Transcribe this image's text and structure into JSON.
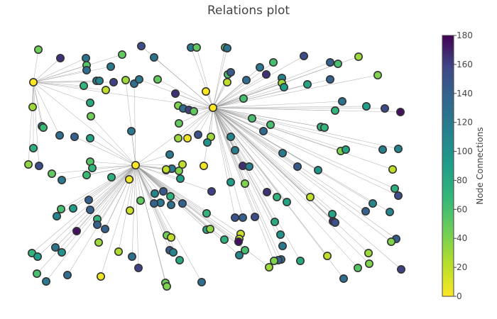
{
  "chart_data": {
    "type": "network",
    "title": "Relations plot",
    "colorbar": {
      "title": "Node Connections",
      "range": [
        0,
        180
      ],
      "ticks": [
        0,
        20,
        40,
        60,
        80,
        100,
        120,
        140,
        160,
        180
      ],
      "colorscale": "Viridis (reversed: 0 = yellow, 180 = purple)"
    },
    "hubs": [
      {
        "x": 47,
        "y": 116,
        "value": 0
      },
      {
        "x": 300,
        "y": 152,
        "value": 0
      },
      {
        "x": 191,
        "y": 233,
        "value": 0
      }
    ],
    "nodes": [
      [
        54,
        70,
        45
      ],
      [
        85,
        82,
        165
      ],
      [
        121,
        82,
        125
      ],
      [
        122,
        92,
        55
      ],
      [
        122,
        99,
        130
      ],
      [
        172,
        77,
        50
      ],
      [
        199,
        65,
        155
      ],
      [
        217,
        81,
        125
      ],
      [
        269,
        67,
        120
      ],
      [
        277,
        67,
        50
      ],
      [
        317,
        67,
        55
      ],
      [
        320,
        68,
        125
      ],
      [
        156,
        94,
        120
      ],
      [
        136,
        114,
        120
      ],
      [
        140,
        114,
        110
      ],
      [
        160,
        116,
        160
      ],
      [
        177,
        113,
        30
      ],
      [
        189,
        118,
        130
      ],
      [
        196,
        112,
        120
      ],
      [
        149,
        127,
        20
      ],
      [
        118,
        121,
        70
      ],
      [
        127,
        145,
        80
      ],
      [
        247,
        132,
        165
      ],
      [
        290,
        129,
        0
      ],
      [
        222,
        112,
        50
      ],
      [
        251,
        149,
        40
      ],
      [
        258,
        153,
        130
      ],
      [
        266,
        155,
        160
      ],
      [
        273,
        157,
        50
      ],
      [
        46,
        151,
        30
      ],
      [
        59,
        178,
        120
      ],
      [
        61,
        180,
        65
      ],
      [
        84,
        191,
        130
      ],
      [
        105,
        193,
        140
      ],
      [
        127,
        195,
        85
      ],
      [
        128,
        164,
        45
      ],
      [
        185,
        185,
        120
      ],
      [
        252,
        174,
        50
      ],
      [
        279,
        190,
        150
      ],
      [
        297,
        193,
        30
      ],
      [
        292,
        201,
        100
      ],
      [
        264,
        195,
        5
      ],
      [
        251,
        195,
        30
      ],
      [
        47,
        209,
        75
      ],
      [
        40,
        232,
        35
      ],
      [
        55,
        234,
        155
      ],
      [
        73,
        245,
        50
      ],
      [
        87,
        254,
        120
      ],
      [
        122,
        247,
        65
      ],
      [
        127,
        228,
        55
      ],
      [
        130,
        237,
        70
      ],
      [
        157,
        250,
        75
      ],
      [
        182,
        253,
        5
      ],
      [
        239,
        218,
        120
      ],
      [
        234,
        240,
        160
      ],
      [
        242,
        238,
        120
      ],
      [
        252,
        241,
        40
      ],
      [
        254,
        252,
        90
      ],
      [
        287,
        234,
        5
      ],
      [
        325,
        193,
        110
      ],
      [
        343,
        139,
        60
      ],
      [
        321,
        105,
        60
      ],
      [
        320,
        116,
        20
      ],
      [
        325,
        102,
        145
      ],
      [
        347,
        113,
        130
      ],
      [
        375,
        105,
        165
      ],
      [
        366,
        95,
        120
      ],
      [
        385,
        88,
        60
      ],
      [
        397,
        110,
        110
      ],
      [
        397,
        117,
        30
      ],
      [
        400,
        123,
        90
      ],
      [
        355,
        167,
        60
      ],
      [
        371,
        185,
        135
      ],
      [
        381,
        176,
        60
      ],
      [
        342,
        234,
        165
      ],
      [
        351,
        235,
        115
      ],
      [
        331,
        212,
        115
      ],
      [
        398,
        216,
        120
      ],
      [
        419,
        235,
        145
      ],
      [
        448,
        240,
        100
      ],
      [
        428,
        79,
        155
      ],
      [
        465,
        88,
        140
      ],
      [
        476,
        90,
        60
      ],
      [
        505,
        80,
        30
      ],
      [
        532,
        106,
        40
      ],
      [
        465,
        112,
        140
      ],
      [
        433,
        119,
        85
      ],
      [
        482,
        143,
        125
      ],
      [
        472,
        156,
        70
      ],
      [
        516,
        150,
        90
      ],
      [
        542,
        153,
        155
      ],
      [
        564,
        158,
        175
      ],
      [
        452,
        179,
        70
      ],
      [
        457,
        180,
        70
      ],
      [
        480,
        213,
        40
      ],
      [
        487,
        211,
        85
      ],
      [
        539,
        211,
        115
      ],
      [
        561,
        210,
        110
      ],
      [
        553,
        239,
        20
      ],
      [
        325,
        257,
        90
      ],
      [
        345,
        259,
        40
      ],
      [
        376,
        271,
        165
      ],
      [
        390,
        278,
        70
      ],
      [
        404,
        285,
        85
      ],
      [
        437,
        278,
        20
      ],
      [
        556,
        266,
        75
      ],
      [
        561,
        276,
        155
      ],
      [
        525,
        287,
        110
      ],
      [
        515,
        298,
        140
      ],
      [
        549,
        299,
        110
      ],
      [
        468,
        302,
        85
      ],
      [
        469,
        312,
        165
      ],
      [
        472,
        314,
        150
      ],
      [
        558,
        337,
        145
      ],
      [
        551,
        341,
        40
      ],
      [
        519,
        357,
        30
      ],
      [
        461,
        361,
        20
      ],
      [
        504,
        378,
        55
      ],
      [
        520,
        372,
        40
      ],
      [
        565,
        380,
        160
      ],
      [
        484,
        393,
        130
      ],
      [
        108,
        326,
        175
      ],
      [
        137,
        309,
        70
      ],
      [
        137,
        317,
        140
      ],
      [
        148,
        323,
        140
      ],
      [
        139,
        342,
        30
      ],
      [
        125,
        282,
        140
      ],
      [
        127,
        296,
        140
      ],
      [
        198,
        283,
        50
      ],
      [
        183,
        297,
        15
      ],
      [
        218,
        273,
        110
      ],
      [
        230,
        270,
        145
      ],
      [
        240,
        277,
        75
      ],
      [
        226,
        286,
        120
      ],
      [
        217,
        287,
        140
      ],
      [
        241,
        289,
        130
      ],
      [
        257,
        287,
        140
      ],
      [
        298,
        270,
        160
      ],
      [
        291,
        301,
        70
      ],
      [
        291,
        324,
        80
      ],
      [
        296,
        323,
        35
      ],
      [
        316,
        338,
        75
      ],
      [
        331,
        307,
        150
      ],
      [
        342,
        307,
        140
      ],
      [
        359,
        306,
        155
      ],
      [
        387,
        313,
        80
      ],
      [
        395,
        331,
        100
      ],
      [
        339,
        330,
        15
      ],
      [
        337,
        337,
        20
      ],
      [
        336,
        341,
        175
      ],
      [
        345,
        353,
        60
      ],
      [
        337,
        360,
        110
      ],
      [
        398,
        347,
        120
      ],
      [
        396,
        366,
        130
      ],
      [
        392,
        367,
        140
      ],
      [
        386,
        368,
        40
      ],
      [
        379,
        377,
        30
      ],
      [
        423,
        368,
        80
      ],
      [
        45,
        357,
        70
      ],
      [
        53,
        362,
        90
      ],
      [
        78,
        349,
        125
      ],
      [
        87,
        356,
        100
      ],
      [
        52,
        386,
        60
      ],
      [
        65,
        397,
        120
      ],
      [
        95,
        388,
        130
      ],
      [
        142,
        390,
        5
      ],
      [
        167,
        355,
        25
      ],
      [
        186,
        362,
        130
      ],
      [
        195,
        378,
        160
      ],
      [
        233,
        399,
        45
      ],
      [
        235,
        404,
        40
      ],
      [
        239,
        353,
        145
      ],
      [
        244,
        356,
        110
      ],
      [
        253,
        367,
        80
      ],
      [
        235,
        332,
        45
      ],
      [
        241,
        335,
        20
      ],
      [
        284,
        398,
        130
      ],
      [
        86,
        295,
        60
      ],
      [
        80,
        305,
        110
      ],
      [
        103,
        294,
        90
      ],
      [
        257,
        232,
        20
      ],
      [
        234,
        239,
        20
      ]
    ]
  }
}
